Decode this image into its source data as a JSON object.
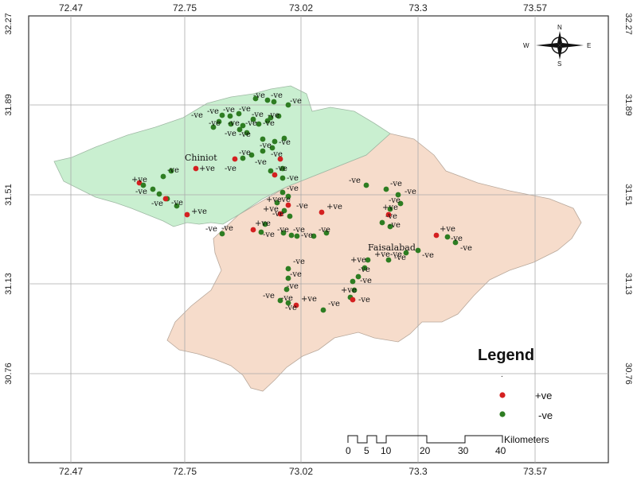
{
  "map": {
    "lon_ticks": [
      "72.47",
      "72.75",
      "73.02",
      "73.3",
      "73.57"
    ],
    "lat_ticks": [
      "32.27",
      "31.89",
      "31.51",
      "31.13",
      "30.76"
    ],
    "regions": [
      {
        "name": "Chiniot",
        "color": "#c9efd0"
      },
      {
        "name": "Faisalabad",
        "color": "#f6dccb"
      }
    ],
    "compass": {
      "n": "N",
      "s": "S",
      "e": "E",
      "w": "W"
    }
  },
  "legend": {
    "title": "Legend",
    "items": [
      {
        "label": "+ve",
        "color": "#d42020"
      },
      {
        "label": "-ve",
        "color": "#2e7d22"
      }
    ]
  },
  "scale_bar": {
    "unit": "Kilometers",
    "ticks": [
      "0",
      "5",
      "10",
      "20",
      "30",
      "40"
    ]
  }
}
